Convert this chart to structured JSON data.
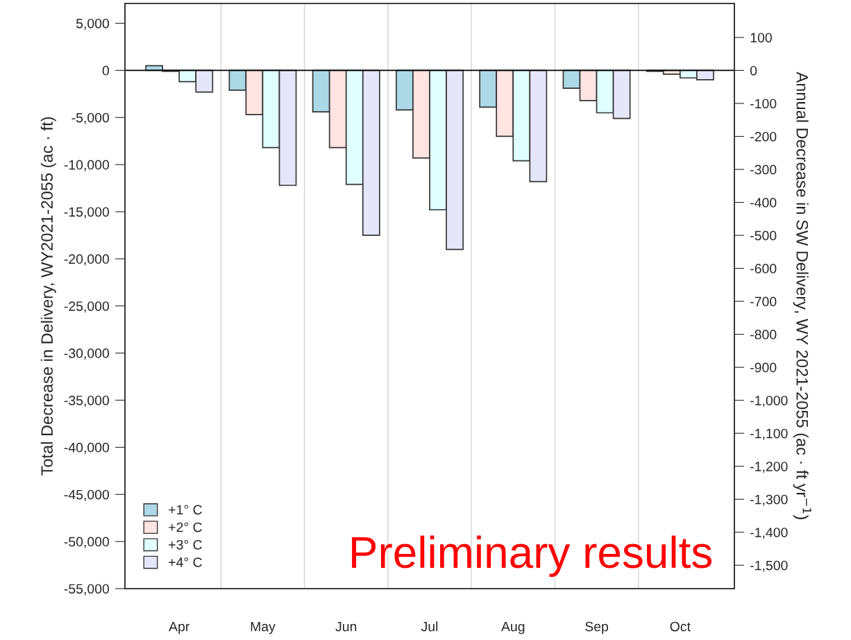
{
  "chart_data": {
    "type": "bar",
    "ylabel": "Total Decrease in Delivery, WY2021-2055 (ac · ft)",
    "y2label": "Annual Decrease in SW Delivery, WY 2021-2055 (ac · ft yr$^{−1}$)",
    "categories": [
      "Apr",
      "May",
      "Jun",
      "Jul",
      "Aug",
      "Sep",
      "Oct"
    ],
    "series": [
      {
        "name": "+1° C",
        "color": "#add8e6",
        "values": [
          500,
          -2100,
          -4400,
          -4200,
          -3900,
          -1900,
          -100
        ]
      },
      {
        "name": "+2° C",
        "color": "#ffe4e1",
        "values": [
          -100,
          -4700,
          -8200,
          -9300,
          -7000,
          -3200,
          -400
        ]
      },
      {
        "name": "+3° C",
        "color": "#e0ffff",
        "values": [
          -1200,
          -8200,
          -12100,
          -14800,
          -9600,
          -4500,
          -800
        ]
      },
      {
        "name": "+4° C",
        "color": "#e6e6fa",
        "values": [
          -2300,
          -12200,
          -17500,
          -19000,
          -11800,
          -5100,
          -1000
        ]
      }
    ],
    "ylim": [
      -55000,
      7100
    ],
    "yticks": [
      {
        "value": -55000,
        "label": "-55,000"
      },
      {
        "value": -50000,
        "label": "-50,000"
      },
      {
        "value": -45000,
        "label": "-45,000"
      },
      {
        "value": -40000,
        "label": "-40,000"
      },
      {
        "value": -35000,
        "label": "-35,000"
      },
      {
        "value": -30000,
        "label": "-30,000"
      },
      {
        "value": -25000,
        "label": "-25,000"
      },
      {
        "value": -20000,
        "label": "-20,000"
      },
      {
        "value": -15000,
        "label": "-15,000"
      },
      {
        "value": -10000,
        "label": "-10,000"
      },
      {
        "value": -5000,
        "label": "-5,000"
      },
      0,
      {
        "value": 5000,
        "label": "5,000"
      }
    ],
    "y2lim": [
      -1571,
      203
    ],
    "y2ticks": [
      {
        "value": -1500,
        "label": "-1,500"
      },
      {
        "value": -1400,
        "label": "-1,400"
      },
      {
        "value": -1300,
        "label": "-1,300"
      },
      {
        "value": -1200,
        "label": "-1,200"
      },
      {
        "value": -1100,
        "label": "-1,100"
      },
      {
        "value": -1000,
        "label": "-1,000"
      },
      -900,
      -800,
      -700,
      -600,
      -500,
      -400,
      -300,
      -200,
      -100,
      0,
      100
    ],
    "ref_lines": [
      {
        "axis": "y",
        "value": 0,
        "color": "#000000"
      }
    ],
    "grid": "x",
    "legend": "bottom left",
    "annotations": [
      "Preliminary results"
    ]
  }
}
